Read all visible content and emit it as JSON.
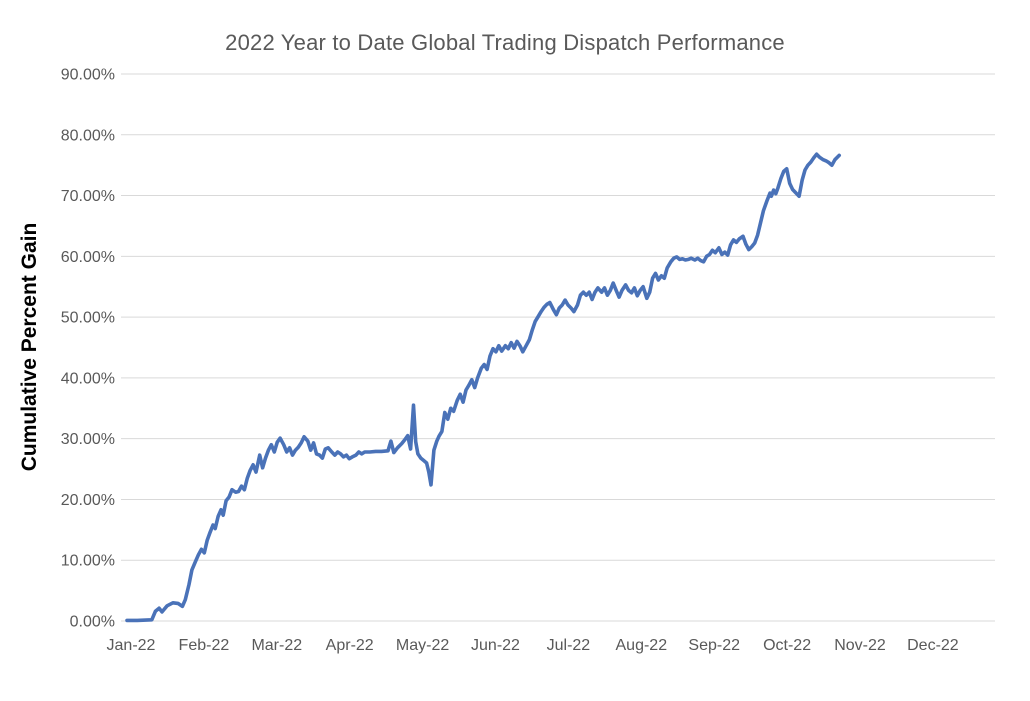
{
  "chart": {
    "title": "2022 Year to Date Global Trading Dispatch Performance",
    "y_axis_title": "Cumulative Percent Gain",
    "colors": {
      "line": "#4a72b8",
      "grid": "#d9d9d9",
      "axis_text": "#595959",
      "title_text": "#595959",
      "y_title_text": "#000000",
      "background": "#ffffff"
    }
  },
  "chart_data": {
    "type": "line",
    "title": "2022 Year to Date Global Trading Dispatch Performance",
    "xlabel": "",
    "ylabel": "Cumulative Percent Gain",
    "x_tick_labels": [
      "Jan-22",
      "Feb-22",
      "Mar-22",
      "Apr-22",
      "May-22",
      "Jun-22",
      "Jul-22",
      "Aug-22",
      "Sep-22",
      "Oct-22",
      "Nov-22",
      "Dec-22"
    ],
    "y_tick_labels": [
      "0.00%",
      "10.00%",
      "20.00%",
      "30.00%",
      "40.00%",
      "50.00%",
      "60.00%",
      "70.00%",
      "80.00%",
      "90.00%"
    ],
    "ylim": [
      0,
      90
    ],
    "y_tick_step": 10,
    "grid": "horizontal",
    "legend": "none",
    "x_encoding": "months elapsed since Jan-22 tick (0 = Jan-22, 9.77 = late Oct-22)",
    "y_unit": "percent",
    "series": [
      {
        "name": "Cumulative Percent Gain",
        "points": [
          [
            0,
            0.1
          ],
          [
            0.14,
            0.1
          ],
          [
            0.34,
            0.2
          ],
          [
            0.39,
            1.6
          ],
          [
            0.44,
            2.1
          ],
          [
            0.48,
            1.5
          ],
          [
            0.55,
            2.5
          ],
          [
            0.63,
            3.0
          ],
          [
            0.7,
            2.9
          ],
          [
            0.76,
            2.4
          ],
          [
            0.8,
            3.5
          ],
          [
            0.85,
            6.0
          ],
          [
            0.89,
            8.4
          ],
          [
            0.94,
            9.8
          ],
          [
            0.98,
            10.9
          ],
          [
            1.02,
            11.8
          ],
          [
            1.06,
            11.2
          ],
          [
            1.1,
            13.3
          ],
          [
            1.14,
            14.6
          ],
          [
            1.18,
            15.8
          ],
          [
            1.21,
            15.2
          ],
          [
            1.25,
            17.2
          ],
          [
            1.29,
            18.3
          ],
          [
            1.32,
            17.4
          ],
          [
            1.36,
            19.8
          ],
          [
            1.4,
            20.4
          ],
          [
            1.44,
            21.6
          ],
          [
            1.49,
            21.2
          ],
          [
            1.53,
            21.3
          ],
          [
            1.57,
            22.2
          ],
          [
            1.61,
            21.6
          ],
          [
            1.65,
            23.5
          ],
          [
            1.69,
            24.8
          ],
          [
            1.73,
            25.7
          ],
          [
            1.77,
            24.5
          ],
          [
            1.82,
            27.3
          ],
          [
            1.86,
            25.2
          ],
          [
            1.9,
            26.8
          ],
          [
            1.94,
            28.1
          ],
          [
            1.98,
            29.0
          ],
          [
            2.02,
            27.8
          ],
          [
            2.06,
            29.4
          ],
          [
            2.1,
            30.1
          ],
          [
            2.15,
            29.0
          ],
          [
            2.19,
            27.8
          ],
          [
            2.23,
            28.5
          ],
          [
            2.27,
            27.3
          ],
          [
            2.31,
            28.1
          ],
          [
            2.35,
            28.6
          ],
          [
            2.39,
            29.3
          ],
          [
            2.43,
            30.3
          ],
          [
            2.48,
            29.6
          ],
          [
            2.52,
            28.1
          ],
          [
            2.56,
            29.3
          ],
          [
            2.6,
            27.5
          ],
          [
            2.64,
            27.3
          ],
          [
            2.68,
            26.8
          ],
          [
            2.72,
            28.3
          ],
          [
            2.76,
            28.5
          ],
          [
            2.81,
            27.8
          ],
          [
            2.85,
            27.3
          ],
          [
            2.89,
            27.8
          ],
          [
            2.93,
            27.5
          ],
          [
            2.97,
            27.0
          ],
          [
            3.01,
            27.3
          ],
          [
            3.05,
            26.7
          ],
          [
            3.09,
            27.0
          ],
          [
            3.14,
            27.3
          ],
          [
            3.18,
            27.8
          ],
          [
            3.22,
            27.5
          ],
          [
            3.26,
            27.8
          ],
          [
            3.33,
            27.8
          ],
          [
            3.41,
            27.9
          ],
          [
            3.49,
            27.9
          ],
          [
            3.58,
            28.0
          ],
          [
            3.62,
            29.6
          ],
          [
            3.66,
            27.7
          ],
          [
            3.71,
            28.5
          ],
          [
            3.77,
            29.2
          ],
          [
            3.81,
            29.8
          ],
          [
            3.85,
            30.5
          ],
          [
            3.89,
            28.3
          ],
          [
            3.93,
            35.5
          ],
          [
            3.96,
            29.5
          ],
          [
            3.99,
            27.5
          ],
          [
            4.03,
            26.8
          ],
          [
            4.07,
            26.4
          ],
          [
            4.11,
            26.0
          ],
          [
            4.14,
            24.5
          ],
          [
            4.17,
            22.4
          ],
          [
            4.21,
            28.1
          ],
          [
            4.25,
            29.6
          ],
          [
            4.28,
            30.4
          ],
          [
            4.32,
            31.2
          ],
          [
            4.36,
            34.3
          ],
          [
            4.4,
            33.2
          ],
          [
            4.44,
            35.0
          ],
          [
            4.48,
            34.5
          ],
          [
            4.53,
            36.3
          ],
          [
            4.57,
            37.3
          ],
          [
            4.61,
            36.0
          ],
          [
            4.65,
            38.0
          ],
          [
            4.69,
            38.8
          ],
          [
            4.73,
            39.7
          ],
          [
            4.77,
            38.4
          ],
          [
            4.81,
            40.0
          ],
          [
            4.86,
            41.6
          ],
          [
            4.9,
            42.2
          ],
          [
            4.94,
            41.4
          ],
          [
            4.98,
            43.6
          ],
          [
            5.02,
            44.8
          ],
          [
            5.06,
            44.3
          ],
          [
            5.1,
            45.3
          ],
          [
            5.14,
            44.4
          ],
          [
            5.19,
            45.3
          ],
          [
            5.23,
            44.8
          ],
          [
            5.27,
            45.8
          ],
          [
            5.31,
            44.9
          ],
          [
            5.35,
            46.0
          ],
          [
            5.39,
            45.3
          ],
          [
            5.43,
            44.3
          ],
          [
            5.47,
            45.2
          ],
          [
            5.52,
            46.3
          ],
          [
            5.56,
            47.9
          ],
          [
            5.6,
            49.3
          ],
          [
            5.64,
            50.1
          ],
          [
            5.68,
            50.9
          ],
          [
            5.72,
            51.6
          ],
          [
            5.76,
            52.1
          ],
          [
            5.8,
            52.4
          ],
          [
            5.85,
            51.2
          ],
          [
            5.89,
            50.4
          ],
          [
            5.93,
            51.5
          ],
          [
            5.97,
            52.0
          ],
          [
            6.01,
            52.8
          ],
          [
            6.05,
            52.0
          ],
          [
            6.09,
            51.5
          ],
          [
            6.13,
            50.9
          ],
          [
            6.18,
            52.0
          ],
          [
            6.22,
            53.6
          ],
          [
            6.26,
            54.1
          ],
          [
            6.3,
            53.6
          ],
          [
            6.34,
            54.1
          ],
          [
            6.38,
            52.9
          ],
          [
            6.42,
            54.1
          ],
          [
            6.46,
            54.8
          ],
          [
            6.51,
            54.1
          ],
          [
            6.55,
            54.8
          ],
          [
            6.59,
            53.6
          ],
          [
            6.63,
            54.4
          ],
          [
            6.67,
            55.6
          ],
          [
            6.71,
            54.4
          ],
          [
            6.75,
            53.3
          ],
          [
            6.79,
            54.4
          ],
          [
            6.84,
            55.3
          ],
          [
            6.88,
            54.4
          ],
          [
            6.92,
            54.0
          ],
          [
            6.96,
            54.8
          ],
          [
            7.0,
            53.5
          ],
          [
            7.04,
            54.4
          ],
          [
            7.08,
            55.0
          ],
          [
            7.13,
            53.1
          ],
          [
            7.17,
            54.1
          ],
          [
            7.21,
            56.4
          ],
          [
            7.25,
            57.2
          ],
          [
            7.29,
            56.1
          ],
          [
            7.33,
            56.8
          ],
          [
            7.37,
            56.4
          ],
          [
            7.41,
            58.1
          ],
          [
            7.46,
            59.1
          ],
          [
            7.5,
            59.7
          ],
          [
            7.54,
            59.9
          ],
          [
            7.58,
            59.5
          ],
          [
            7.62,
            59.6
          ],
          [
            7.66,
            59.4
          ],
          [
            7.7,
            59.5
          ],
          [
            7.74,
            59.7
          ],
          [
            7.79,
            59.4
          ],
          [
            7.83,
            59.7
          ],
          [
            7.87,
            59.3
          ],
          [
            7.91,
            59.1
          ],
          [
            7.95,
            60.0
          ],
          [
            7.99,
            60.3
          ],
          [
            8.03,
            61.0
          ],
          [
            8.07,
            60.6
          ],
          [
            8.12,
            61.4
          ],
          [
            8.16,
            60.3
          ],
          [
            8.2,
            60.7
          ],
          [
            8.24,
            60.2
          ],
          [
            8.28,
            61.9
          ],
          [
            8.32,
            62.7
          ],
          [
            8.36,
            62.3
          ],
          [
            8.4,
            62.9
          ],
          [
            8.45,
            63.3
          ],
          [
            8.49,
            62.0
          ],
          [
            8.53,
            61.1
          ],
          [
            8.57,
            61.6
          ],
          [
            8.61,
            62.2
          ],
          [
            8.65,
            63.5
          ],
          [
            8.69,
            65.5
          ],
          [
            8.73,
            67.5
          ],
          [
            8.78,
            69.2
          ],
          [
            8.82,
            70.4
          ],
          [
            8.84,
            69.9
          ],
          [
            8.87,
            70.9
          ],
          [
            8.9,
            70.3
          ],
          [
            8.93,
            71.3
          ],
          [
            8.97,
            72.8
          ],
          [
            9.01,
            74.0
          ],
          [
            9.05,
            74.4
          ],
          [
            9.09,
            72.0
          ],
          [
            9.13,
            71.0
          ],
          [
            9.17,
            70.5
          ],
          [
            9.22,
            69.9
          ],
          [
            9.26,
            72.5
          ],
          [
            9.3,
            74.2
          ],
          [
            9.34,
            75.0
          ],
          [
            9.38,
            75.5
          ],
          [
            9.42,
            76.2
          ],
          [
            9.46,
            76.8
          ],
          [
            9.5,
            76.3
          ],
          [
            9.55,
            75.9
          ],
          [
            9.59,
            75.7
          ],
          [
            9.63,
            75.4
          ],
          [
            9.67,
            75.0
          ],
          [
            9.71,
            75.9
          ],
          [
            9.77,
            76.6
          ]
        ]
      }
    ]
  },
  "layout_hints": {
    "final_visible_value": "76.6%",
    "line_ends_between": "Oct-22 and Nov-22"
  }
}
